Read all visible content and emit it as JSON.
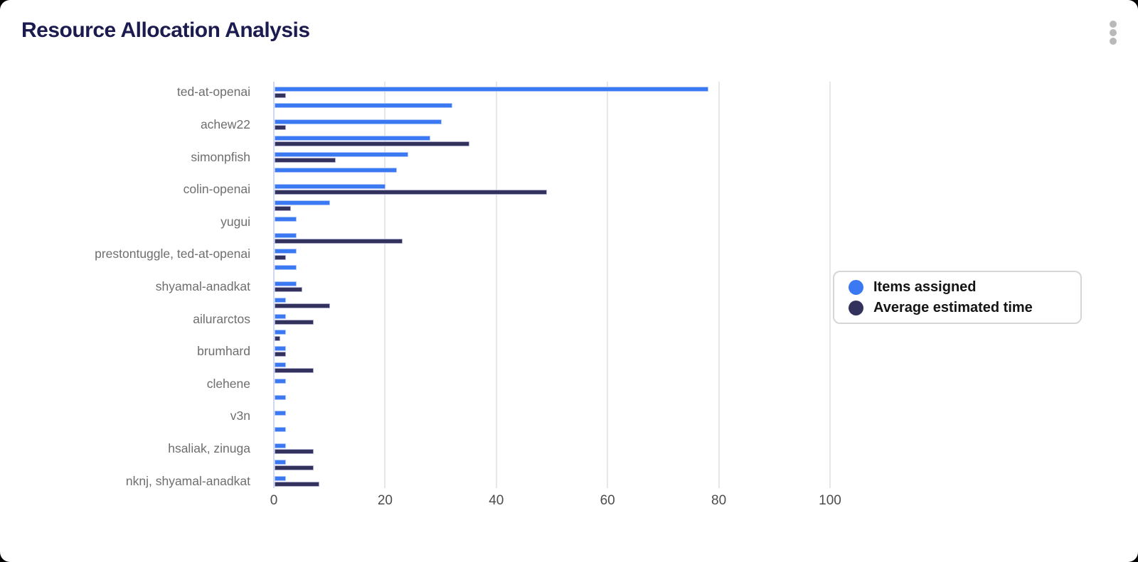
{
  "header": {
    "title": "Resource Allocation Analysis",
    "menu_icon": "kebab-menu-icon"
  },
  "colors": {
    "card_background": "#ffffff",
    "backdrop": "#000000",
    "title_text": "#1b1b4f",
    "category_label_text": "#6e6e6e",
    "tick_label_text": "#4d4d4d",
    "gridline": "#e7e7e7",
    "axis_line": "#cfd8ee",
    "items_assigned_bar": "#3b79f2",
    "items_assigned_bar_border": "#a9c2f7",
    "avg_time_bar": "#32325c",
    "avg_time_bar_border": "#a8a8cc",
    "legend_border": "#d6d6d6",
    "menu_dots": "#b9b9b9"
  },
  "chart_data": {
    "type": "bar",
    "orientation": "horizontal",
    "title": "Resource Allocation Analysis",
    "xlabel": "",
    "ylabel": "",
    "x_ticks": [
      0,
      20,
      40,
      60,
      80,
      100
    ],
    "xlim": [
      0,
      110
    ],
    "grid": "vertical",
    "legend_position": "right-center",
    "categories": [
      "ted-at-openai",
      "",
      "achew22",
      "",
      "simonpfish",
      "",
      "colin-openai",
      "",
      "yugui",
      "",
      "prestontuggle, ted-at-openai",
      "",
      "shyamal-anadkat",
      "",
      "ailurarctos",
      "",
      "brumhard",
      "",
      "clehene",
      "",
      "v3n",
      "",
      "hsaliak, zinuga",
      "",
      "nknj, shyamal-anadkat"
    ],
    "series": [
      {
        "name": "Items assigned",
        "color": "#3b79f2",
        "values": [
          78,
          32,
          30,
          28,
          24,
          22,
          20,
          10,
          4,
          4,
          4,
          4,
          4,
          2,
          2,
          2,
          2,
          2,
          2,
          2,
          2,
          2,
          2,
          2,
          2
        ]
      },
      {
        "name": "Average estimated time",
        "color": "#32325c",
        "values": [
          2,
          0,
          2,
          35,
          11,
          0,
          49,
          3,
          0,
          23,
          2,
          0,
          5,
          10,
          7,
          1,
          2,
          7,
          0,
          0,
          0,
          0,
          7,
          7,
          8
        ]
      }
    ]
  },
  "legend": {
    "items": [
      {
        "label": "Items assigned",
        "color": "#3b79f2"
      },
      {
        "label": "Average estimated time",
        "color": "#32325c"
      }
    ]
  }
}
